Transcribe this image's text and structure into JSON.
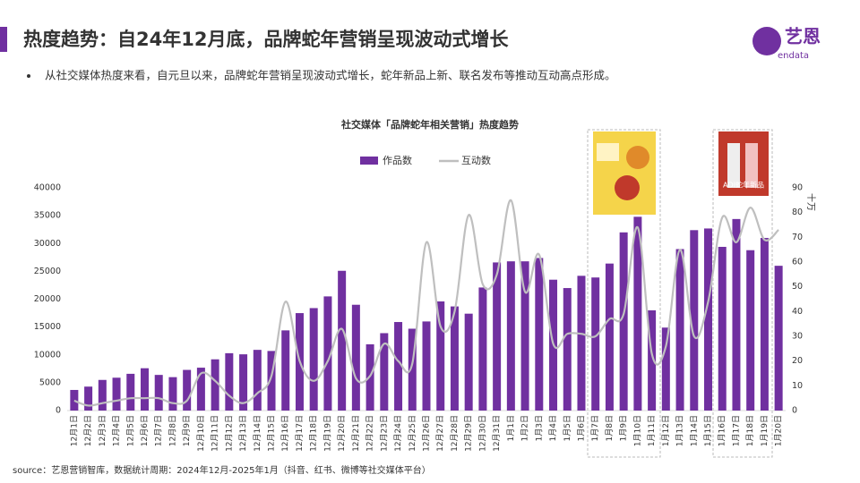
{
  "header": {
    "title": "热度趋势：自24年12月底，品牌蛇年营销呈现波动式增长",
    "bullet": "从社交媒体热度来看，自元旦以来，品牌蛇年营销呈现波动式增长，蛇年新品上新、联名发布等推动互动高点形成。",
    "logo": "艺恩",
    "logo_sub": "endata"
  },
  "footer": {
    "source": "source：艺恩营销智库，数据统计周期：2024年12月-2025年1月（抖音、红书、微博等社交媒体平台）"
  },
  "chart_data": {
    "type": "bar_line",
    "title": "社交媒体「品牌蛇年相关营销」热度趋势",
    "categories": [
      "12月1日",
      "12月2日",
      "12月3日",
      "12月4日",
      "12月5日",
      "12月6日",
      "12月7日",
      "12月8日",
      "12月9日",
      "12月10日",
      "12月11日",
      "12月12日",
      "12月13日",
      "12月14日",
      "12月15日",
      "12月16日",
      "12月17日",
      "12月18日",
      "12月19日",
      "12月20日",
      "12月21日",
      "12月22日",
      "12月23日",
      "12月24日",
      "12月25日",
      "12月26日",
      "12月27日",
      "12月28日",
      "12月29日",
      "12月30日",
      "12月31日",
      "1月1日",
      "1月2日",
      "1月3日",
      "1月4日",
      "1月5日",
      "1月6日",
      "1月7日",
      "1月8日",
      "1月9日",
      "1月10日",
      "1月11日",
      "1月12日",
      "1月13日",
      "1月14日",
      "1月15日",
      "1月16日",
      "1月17日",
      "1月18日",
      "1月19日",
      "1月20日"
    ],
    "series": [
      {
        "name": "作品数",
        "type": "bar",
        "color": "#7030a0",
        "values": [
          3700,
          4300,
          5500,
          5900,
          6600,
          7600,
          6400,
          6000,
          7300,
          7700,
          9200,
          10300,
          10100,
          10900,
          10700,
          14400,
          17500,
          18400,
          20500,
          25100,
          19000,
          11900,
          13900,
          15900,
          14700,
          16000,
          19600,
          18700,
          17400,
          22100,
          26600,
          26800,
          26800,
          27400,
          23500,
          22000,
          24200,
          23900,
          26400,
          32000,
          34800,
          18000,
          14900,
          29000,
          32400,
          32700,
          29400,
          34400,
          28800,
          31000,
          26000
        ]
      },
      {
        "name": "互动数",
        "type": "line",
        "axis": "y2",
        "color": "#bfbfbf",
        "values": [
          4,
          2,
          3,
          4,
          5,
          5,
          5,
          3,
          4,
          15,
          12,
          6,
          3,
          7,
          14,
          44,
          20,
          12,
          20,
          33,
          13,
          14,
          27,
          20,
          19,
          68,
          34,
          40,
          79,
          51,
          55,
          85,
          48,
          63,
          27,
          31,
          31,
          30,
          37,
          39,
          74,
          23,
          26,
          65,
          30,
          44,
          78,
          68,
          82,
          69,
          73
        ]
      }
    ],
    "ylim": [
      0,
      40000
    ],
    "yticks": [
      0,
      5000,
      10000,
      15000,
      20000,
      25000,
      30000,
      35000,
      40000
    ],
    "y2lim": [
      0,
      90
    ],
    "y2ticks": [
      0,
      10,
      20,
      30,
      40,
      50,
      60,
      70,
      80,
      90
    ],
    "y2label": "十万",
    "annotations": [
      "ADI蛇年新品"
    ]
  }
}
